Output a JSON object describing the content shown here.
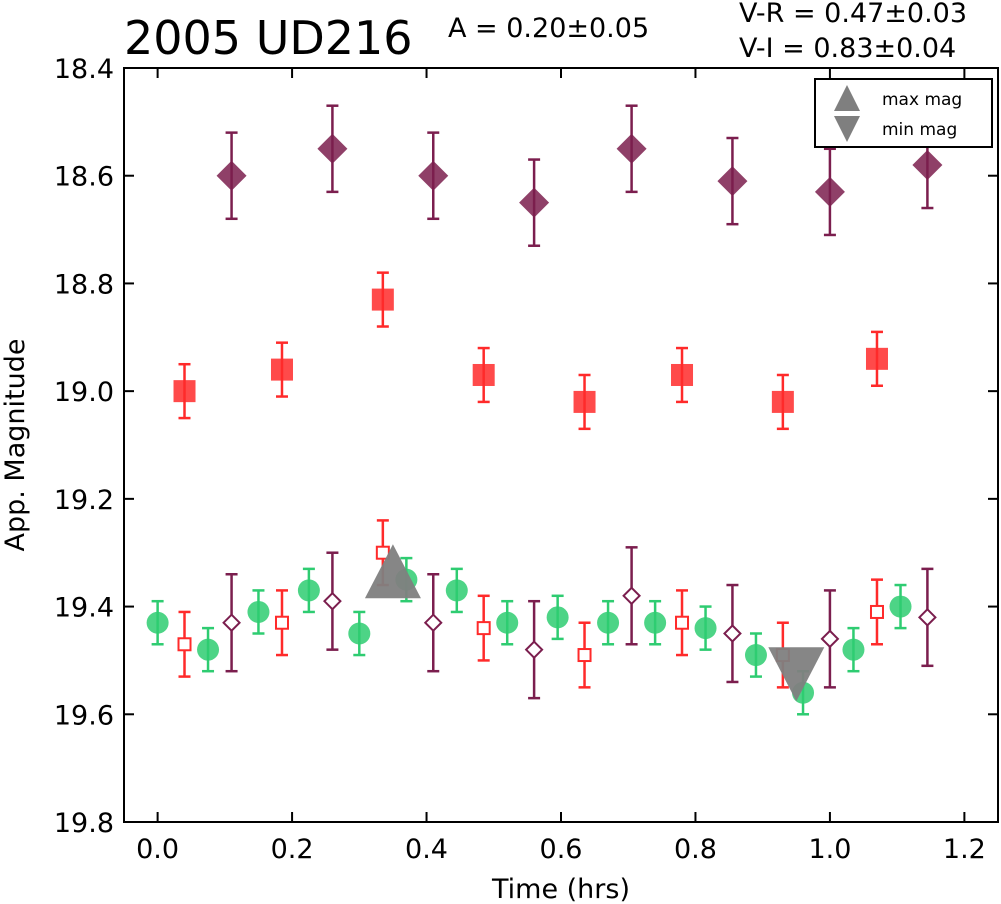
{
  "chart_data": {
    "type": "scatter",
    "title": "2005 UD216",
    "amplitude_label": "A  = 0.20±0.05",
    "color_labels": [
      "V-R = 0.47±0.03",
      "V-I  = 0.83±0.04"
    ],
    "xlabel": "Time (hrs)",
    "ylabel": "App. Magnitude",
    "xlim": [
      -0.05,
      1.25
    ],
    "ylim": [
      18.4,
      19.8
    ],
    "y_inverted": true,
    "grid": false,
    "legend_position": "top-right",
    "x_ticks": [
      "0.0",
      "0.2",
      "0.4",
      "0.6",
      "0.8",
      "1.0",
      "1.2"
    ],
    "y_ticks": [
      "18.4",
      "18.6",
      "18.8",
      "19.0",
      "19.2",
      "19.4",
      "19.6",
      "19.8"
    ],
    "colors": {
      "green": "#2ecc71",
      "red": "#ff2a2a",
      "purple": "#7b1e4e",
      "extrema": "#7f7f7f"
    },
    "series": [
      {
        "marker": "circle",
        "filled": true,
        "color": "#2ecc71",
        "points": [
          {
            "x": 0.0,
            "y": 19.43,
            "err": 0.04
          },
          {
            "x": 0.075,
            "y": 19.48,
            "err": 0.04
          },
          {
            "x": 0.15,
            "y": 19.41,
            "err": 0.04
          },
          {
            "x": 0.225,
            "y": 19.37,
            "err": 0.04
          },
          {
            "x": 0.3,
            "y": 19.45,
            "err": 0.04
          },
          {
            "x": 0.37,
            "y": 19.35,
            "err": 0.04
          },
          {
            "x": 0.445,
            "y": 19.37,
            "err": 0.04
          },
          {
            "x": 0.52,
            "y": 19.43,
            "err": 0.04
          },
          {
            "x": 0.595,
            "y": 19.42,
            "err": 0.04
          },
          {
            "x": 0.67,
            "y": 19.43,
            "err": 0.04
          },
          {
            "x": 0.74,
            "y": 19.43,
            "err": 0.04
          },
          {
            "x": 0.815,
            "y": 19.44,
            "err": 0.04
          },
          {
            "x": 0.89,
            "y": 19.49,
            "err": 0.04
          },
          {
            "x": 0.96,
            "y": 19.56,
            "err": 0.04
          },
          {
            "x": 1.035,
            "y": 19.48,
            "err": 0.04
          },
          {
            "x": 1.105,
            "y": 19.4,
            "err": 0.04
          }
        ]
      },
      {
        "marker": "square",
        "filled": true,
        "color": "#ff2a2a",
        "points": [
          {
            "x": 0.04,
            "y": 19.0,
            "err": 0.05
          },
          {
            "x": 0.185,
            "y": 18.96,
            "err": 0.05
          },
          {
            "x": 0.335,
            "y": 18.83,
            "err": 0.05
          },
          {
            "x": 0.485,
            "y": 18.97,
            "err": 0.05
          },
          {
            "x": 0.635,
            "y": 19.02,
            "err": 0.05
          },
          {
            "x": 0.78,
            "y": 18.97,
            "err": 0.05
          },
          {
            "x": 0.93,
            "y": 19.02,
            "err": 0.05
          },
          {
            "x": 1.07,
            "y": 18.94,
            "err": 0.05
          }
        ]
      },
      {
        "marker": "square",
        "filled": false,
        "color": "#ff2a2a",
        "points": [
          {
            "x": 0.04,
            "y": 19.47,
            "err": 0.06
          },
          {
            "x": 0.185,
            "y": 19.43,
            "err": 0.06
          },
          {
            "x": 0.335,
            "y": 19.3,
            "err": 0.06
          },
          {
            "x": 0.485,
            "y": 19.44,
            "err": 0.06
          },
          {
            "x": 0.635,
            "y": 19.49,
            "err": 0.06
          },
          {
            "x": 0.78,
            "y": 19.43,
            "err": 0.06
          },
          {
            "x": 0.93,
            "y": 19.49,
            "err": 0.06
          },
          {
            "x": 1.07,
            "y": 19.41,
            "err": 0.06
          }
        ]
      },
      {
        "marker": "diamond",
        "filled": true,
        "color": "#7b1e4e",
        "points": [
          {
            "x": 0.11,
            "y": 18.6,
            "err": 0.08
          },
          {
            "x": 0.26,
            "y": 18.55,
            "err": 0.08
          },
          {
            "x": 0.41,
            "y": 18.6,
            "err": 0.08
          },
          {
            "x": 0.56,
            "y": 18.65,
            "err": 0.08
          },
          {
            "x": 0.705,
            "y": 18.55,
            "err": 0.08
          },
          {
            "x": 0.855,
            "y": 18.61,
            "err": 0.08
          },
          {
            "x": 1.0,
            "y": 18.63,
            "err": 0.08
          },
          {
            "x": 1.145,
            "y": 18.58,
            "err": 0.08
          }
        ]
      },
      {
        "marker": "diamond",
        "filled": false,
        "color": "#7b1e4e",
        "points": [
          {
            "x": 0.11,
            "y": 19.43,
            "err": 0.09
          },
          {
            "x": 0.26,
            "y": 19.39,
            "err": 0.09
          },
          {
            "x": 0.41,
            "y": 19.43,
            "err": 0.09
          },
          {
            "x": 0.56,
            "y": 19.48,
            "err": 0.09
          },
          {
            "x": 0.705,
            "y": 19.38,
            "err": 0.09
          },
          {
            "x": 0.855,
            "y": 19.45,
            "err": 0.09
          },
          {
            "x": 1.0,
            "y": 19.46,
            "err": 0.09
          },
          {
            "x": 1.145,
            "y": 19.42,
            "err": 0.09
          }
        ]
      }
    ],
    "extrema": [
      {
        "name": "max mag",
        "marker": "triangle-up",
        "x": 0.35,
        "y": 19.34
      },
      {
        "name": "min mag",
        "marker": "triangle-down",
        "x": 0.95,
        "y": 19.52
      }
    ]
  }
}
